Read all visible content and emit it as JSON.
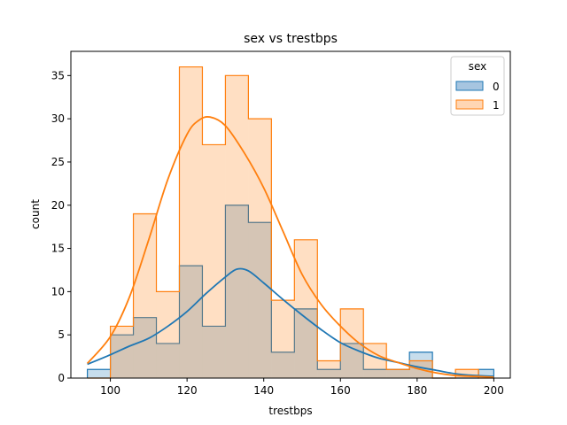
{
  "chart_data": {
    "type": "histogram",
    "title": "sex vs trestbps",
    "xlabel": "trestbps",
    "ylabel": "count",
    "xlim": [
      89.7,
      204.3
    ],
    "ylim": [
      0,
      37.8
    ],
    "xticks": [
      100,
      120,
      140,
      160,
      180,
      200
    ],
    "yticks": [
      0,
      5,
      10,
      15,
      20,
      25,
      30,
      35
    ],
    "bin_edges": [
      94,
      100,
      106,
      112,
      118,
      124,
      130,
      136,
      142,
      148,
      154,
      160,
      166,
      172,
      178,
      184,
      190,
      196,
      200
    ],
    "legend": {
      "title": "sex",
      "position": "top-right"
    },
    "series": [
      {
        "name": "0",
        "color": "#1f77b4",
        "fill": "#a6c5e0",
        "counts": [
          1,
          5,
          7,
          4,
          13,
          6,
          20,
          18,
          3,
          8,
          1,
          4,
          1,
          1,
          3,
          0,
          0,
          1
        ],
        "kde_x": [
          94,
          100,
          105,
          110,
          115,
          120,
          125,
          130,
          133,
          136,
          140,
          145,
          150,
          155,
          160,
          165,
          170,
          175,
          180,
          185,
          190,
          195,
          200
        ],
        "kde_y": [
          1.6,
          2.7,
          3.7,
          4.6,
          6.0,
          7.7,
          9.8,
          11.7,
          12.6,
          12.4,
          11.0,
          9.1,
          7.3,
          5.6,
          4.1,
          3.1,
          2.3,
          1.8,
          1.3,
          0.9,
          0.5,
          0.3,
          0.2
        ]
      },
      {
        "name": "1",
        "color": "#ff7f0e",
        "fill": "#ffd6b4",
        "counts": [
          0,
          6,
          19,
          10,
          36,
          27,
          35,
          30,
          9,
          16,
          2,
          8,
          4,
          1,
          2,
          0,
          1,
          0
        ],
        "kde_x": [
          94,
          100,
          105,
          110,
          115,
          120,
          123,
          126,
          130,
          135,
          140,
          145,
          150,
          155,
          160,
          165,
          170,
          175,
          180,
          185,
          190,
          195,
          200
        ],
        "kde_y": [
          1.7,
          4.8,
          9.4,
          16.0,
          23.0,
          28.2,
          29.8,
          30.2,
          29.2,
          26.0,
          22.0,
          17.0,
          12.0,
          8.5,
          6.0,
          4.0,
          2.6,
          1.8,
          1.1,
          0.6,
          0.3,
          0.2,
          0.1
        ]
      }
    ]
  }
}
